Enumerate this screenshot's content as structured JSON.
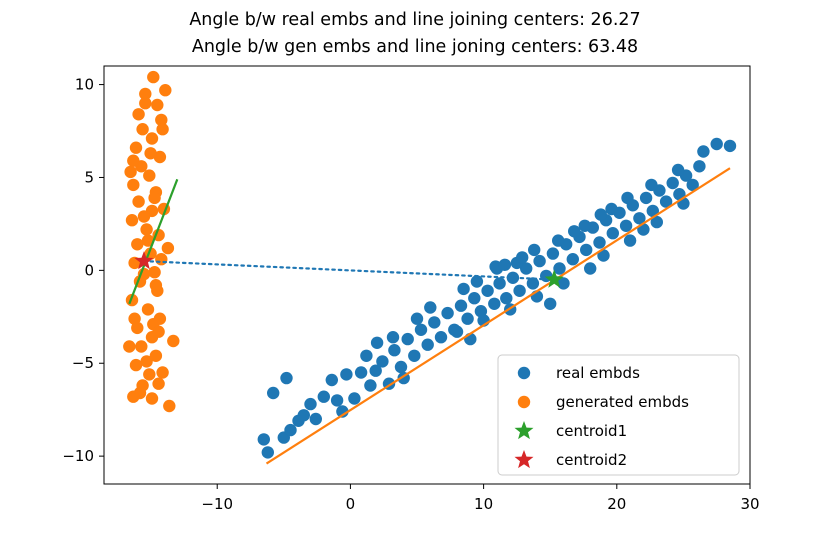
{
  "chart_data": {
    "type": "scatter",
    "title_lines": [
      "Angle b/w real embs and line joining centers: 26.27",
      "Angle b/w gen embs and line joning centers: 63.48"
    ],
    "xlabel": "",
    "ylabel": "",
    "xlim": [
      -18.5,
      30
    ],
    "ylim": [
      -11.5,
      11
    ],
    "x_ticks": [
      -10,
      0,
      10,
      20,
      30
    ],
    "x_tick_labels": [
      "−10",
      "0",
      "10",
      "20",
      "30"
    ],
    "y_ticks": [
      -10,
      -5,
      0,
      5,
      10
    ],
    "y_tick_labels": [
      "−10",
      "−5",
      "0",
      "5",
      "10"
    ],
    "grid": false,
    "legend_position": "lower-right",
    "series": [
      {
        "name": "real embds",
        "kind": "scatter",
        "color": "#1f77b4",
        "marker": "circle",
        "points": [
          [
            -6.5,
            -9.1
          ],
          [
            -6.2,
            -9.8
          ],
          [
            -5.8,
            -6.6
          ],
          [
            -4.8,
            -5.8
          ],
          [
            -5.0,
            -9.0
          ],
          [
            -4.5,
            -8.6
          ],
          [
            -3.9,
            -8.1
          ],
          [
            -3.5,
            -7.8
          ],
          [
            -3.0,
            -7.2
          ],
          [
            -2.6,
            -8.0
          ],
          [
            -2.0,
            -6.8
          ],
          [
            -1.4,
            -5.9
          ],
          [
            -1.0,
            -7.0
          ],
          [
            -0.6,
            -7.6
          ],
          [
            -0.3,
            -5.6
          ],
          [
            0.3,
            -6.9
          ],
          [
            0.8,
            -5.5
          ],
          [
            1.2,
            -4.6
          ],
          [
            1.5,
            -6.2
          ],
          [
            1.9,
            -5.4
          ],
          [
            2.4,
            -4.9
          ],
          [
            2.9,
            -6.1
          ],
          [
            3.3,
            -4.3
          ],
          [
            3.8,
            -5.2
          ],
          [
            4.3,
            -3.7
          ],
          [
            4.8,
            -4.6
          ],
          [
            5.3,
            -3.2
          ],
          [
            5.8,
            -4.0
          ],
          [
            6.3,
            -2.8
          ],
          [
            6.8,
            -3.6
          ],
          [
            7.3,
            -2.3
          ],
          [
            7.8,
            -3.2
          ],
          [
            8.3,
            -1.9
          ],
          [
            8.8,
            -2.6
          ],
          [
            9.3,
            -1.5
          ],
          [
            9.8,
            -2.2
          ],
          [
            10.3,
            -1.1
          ],
          [
            10.8,
            -1.8
          ],
          [
            11.2,
            -0.7
          ],
          [
            11.7,
            -1.5
          ],
          [
            12.2,
            -0.4
          ],
          [
            12.7,
            -1.1
          ],
          [
            13.2,
            0.1
          ],
          [
            13.7,
            -0.7
          ],
          [
            14.2,
            0.5
          ],
          [
            14.7,
            -0.3
          ],
          [
            15.2,
            0.9
          ],
          [
            15.7,
            0.1
          ],
          [
            16.2,
            1.4
          ],
          [
            16.7,
            0.6
          ],
          [
            17.2,
            1.8
          ],
          [
            17.7,
            1.1
          ],
          [
            18.2,
            2.3
          ],
          [
            18.7,
            1.5
          ],
          [
            19.2,
            2.7
          ],
          [
            19.7,
            2.0
          ],
          [
            20.2,
            3.1
          ],
          [
            20.7,
            2.4
          ],
          [
            21.2,
            3.5
          ],
          [
            21.7,
            2.8
          ],
          [
            22.2,
            3.9
          ],
          [
            22.7,
            3.2
          ],
          [
            23.2,
            4.3
          ],
          [
            23.7,
            3.7
          ],
          [
            24.2,
            4.7
          ],
          [
            24.7,
            4.1
          ],
          [
            25.2,
            5.1
          ],
          [
            25.7,
            4.6
          ],
          [
            26.2,
            5.6
          ],
          [
            26.5,
            6.4
          ],
          [
            27.5,
            6.8
          ],
          [
            28.5,
            6.7
          ],
          [
            8.5,
            -1.0
          ],
          [
            9.5,
            -0.6
          ],
          [
            11.0,
            0.1
          ],
          [
            12.5,
            0.4
          ],
          [
            13.8,
            1.1
          ],
          [
            16.8,
            2.1
          ],
          [
            18.8,
            3.0
          ],
          [
            20.8,
            3.9
          ],
          [
            8.0,
            -3.3
          ],
          [
            10.0,
            -2.7
          ],
          [
            12.0,
            -2.1
          ],
          [
            14.0,
            -1.4
          ],
          [
            16.0,
            -0.7
          ],
          [
            18.0,
            0.1
          ],
          [
            21.0,
            1.6
          ],
          [
            23.0,
            2.6
          ],
          [
            5.0,
            -2.6
          ],
          [
            6.0,
            -2.0
          ],
          [
            2.0,
            -3.9
          ],
          [
            3.2,
            -3.6
          ],
          [
            4.0,
            -5.8
          ],
          [
            10.9,
            0.2
          ],
          [
            11.6,
            0.3
          ],
          [
            12.9,
            0.7
          ],
          [
            15.6,
            1.6
          ],
          [
            17.6,
            2.4
          ],
          [
            19.6,
            3.3
          ],
          [
            22.6,
            4.6
          ],
          [
            24.6,
            5.4
          ],
          [
            9.0,
            -3.7
          ],
          [
            15.0,
            -1.8
          ],
          [
            19.0,
            0.8
          ],
          [
            22.0,
            2.2
          ],
          [
            25.0,
            3.6
          ]
        ]
      },
      {
        "name": "generated embds",
        "kind": "scatter",
        "color": "#ff7f0e",
        "marker": "circle",
        "points": [
          [
            -14.8,
            10.4
          ],
          [
            -15.4,
            9.5
          ],
          [
            -14.5,
            8.9
          ],
          [
            -15.9,
            8.4
          ],
          [
            -14.2,
            8.1
          ],
          [
            -15.6,
            7.6
          ],
          [
            -14.9,
            7.1
          ],
          [
            -16.1,
            6.6
          ],
          [
            -14.3,
            6.1
          ],
          [
            -15.7,
            5.6
          ],
          [
            -15.1,
            5.1
          ],
          [
            -16.3,
            4.6
          ],
          [
            -14.6,
            4.2
          ],
          [
            -15.9,
            3.7
          ],
          [
            -14.9,
            3.2
          ],
          [
            -16.4,
            2.7
          ],
          [
            -15.3,
            2.2
          ],
          [
            -14.4,
            1.9
          ],
          [
            -16.0,
            1.4
          ],
          [
            -15.0,
            0.9
          ],
          [
            -13.7,
            1.2
          ],
          [
            -16.2,
            0.4
          ],
          [
            -14.7,
            -0.1
          ],
          [
            -15.8,
            -0.6
          ],
          [
            -14.5,
            -1.1
          ],
          [
            -16.4,
            -1.6
          ],
          [
            -15.2,
            -2.1
          ],
          [
            -14.3,
            -2.6
          ],
          [
            -16.0,
            -3.1
          ],
          [
            -14.9,
            -3.6
          ],
          [
            -15.7,
            -4.1
          ],
          [
            -13.3,
            -3.8
          ],
          [
            -14.6,
            -4.6
          ],
          [
            -16.1,
            -5.1
          ],
          [
            -15.1,
            -5.6
          ],
          [
            -14.4,
            -6.1
          ],
          [
            -15.8,
            -6.6
          ],
          [
            -16.3,
            -6.8
          ],
          [
            -14.9,
            -6.9
          ],
          [
            -13.6,
            -7.3
          ],
          [
            -15.4,
            9.0
          ],
          [
            -14.1,
            7.6
          ],
          [
            -15.0,
            6.3
          ],
          [
            -16.5,
            5.3
          ],
          [
            -14.7,
            3.9
          ],
          [
            -15.5,
            2.9
          ],
          [
            -14.2,
            0.6
          ],
          [
            -15.5,
            -0.2
          ],
          [
            -16.2,
            -2.6
          ],
          [
            -14.8,
            -2.9
          ],
          [
            -15.3,
            -4.9
          ],
          [
            -14.1,
            -5.5
          ],
          [
            -15.6,
            -6.2
          ],
          [
            -13.9,
            9.7
          ],
          [
            -14.6,
            -0.8
          ],
          [
            -16.6,
            -4.1
          ],
          [
            -15.2,
            1.6
          ],
          [
            -14.0,
            3.3
          ],
          [
            -16.3,
            5.9
          ],
          [
            -14.4,
            -3.3
          ]
        ]
      },
      {
        "name": "centroid1",
        "kind": "marker",
        "color": "#2ca02c",
        "marker": "star",
        "points": [
          [
            15.3,
            -0.5
          ]
        ]
      },
      {
        "name": "centroid2",
        "kind": "marker",
        "color": "#d62728",
        "marker": "star",
        "points": [
          [
            -15.5,
            0.5
          ]
        ]
      }
    ],
    "lines": [
      {
        "color": "#ff7f0e",
        "style": "solid",
        "points": [
          [
            -6.3,
            -10.4
          ],
          [
            28.5,
            5.5
          ]
        ]
      },
      {
        "color": "#2ca02c",
        "style": "solid",
        "points": [
          [
            -16.6,
            -1.8
          ],
          [
            -13.0,
            4.9
          ]
        ]
      },
      {
        "color": "#1f77b4",
        "style": "dotted",
        "points": [
          [
            -15.5,
            0.5
          ],
          [
            15.3,
            -0.5
          ]
        ]
      }
    ]
  }
}
